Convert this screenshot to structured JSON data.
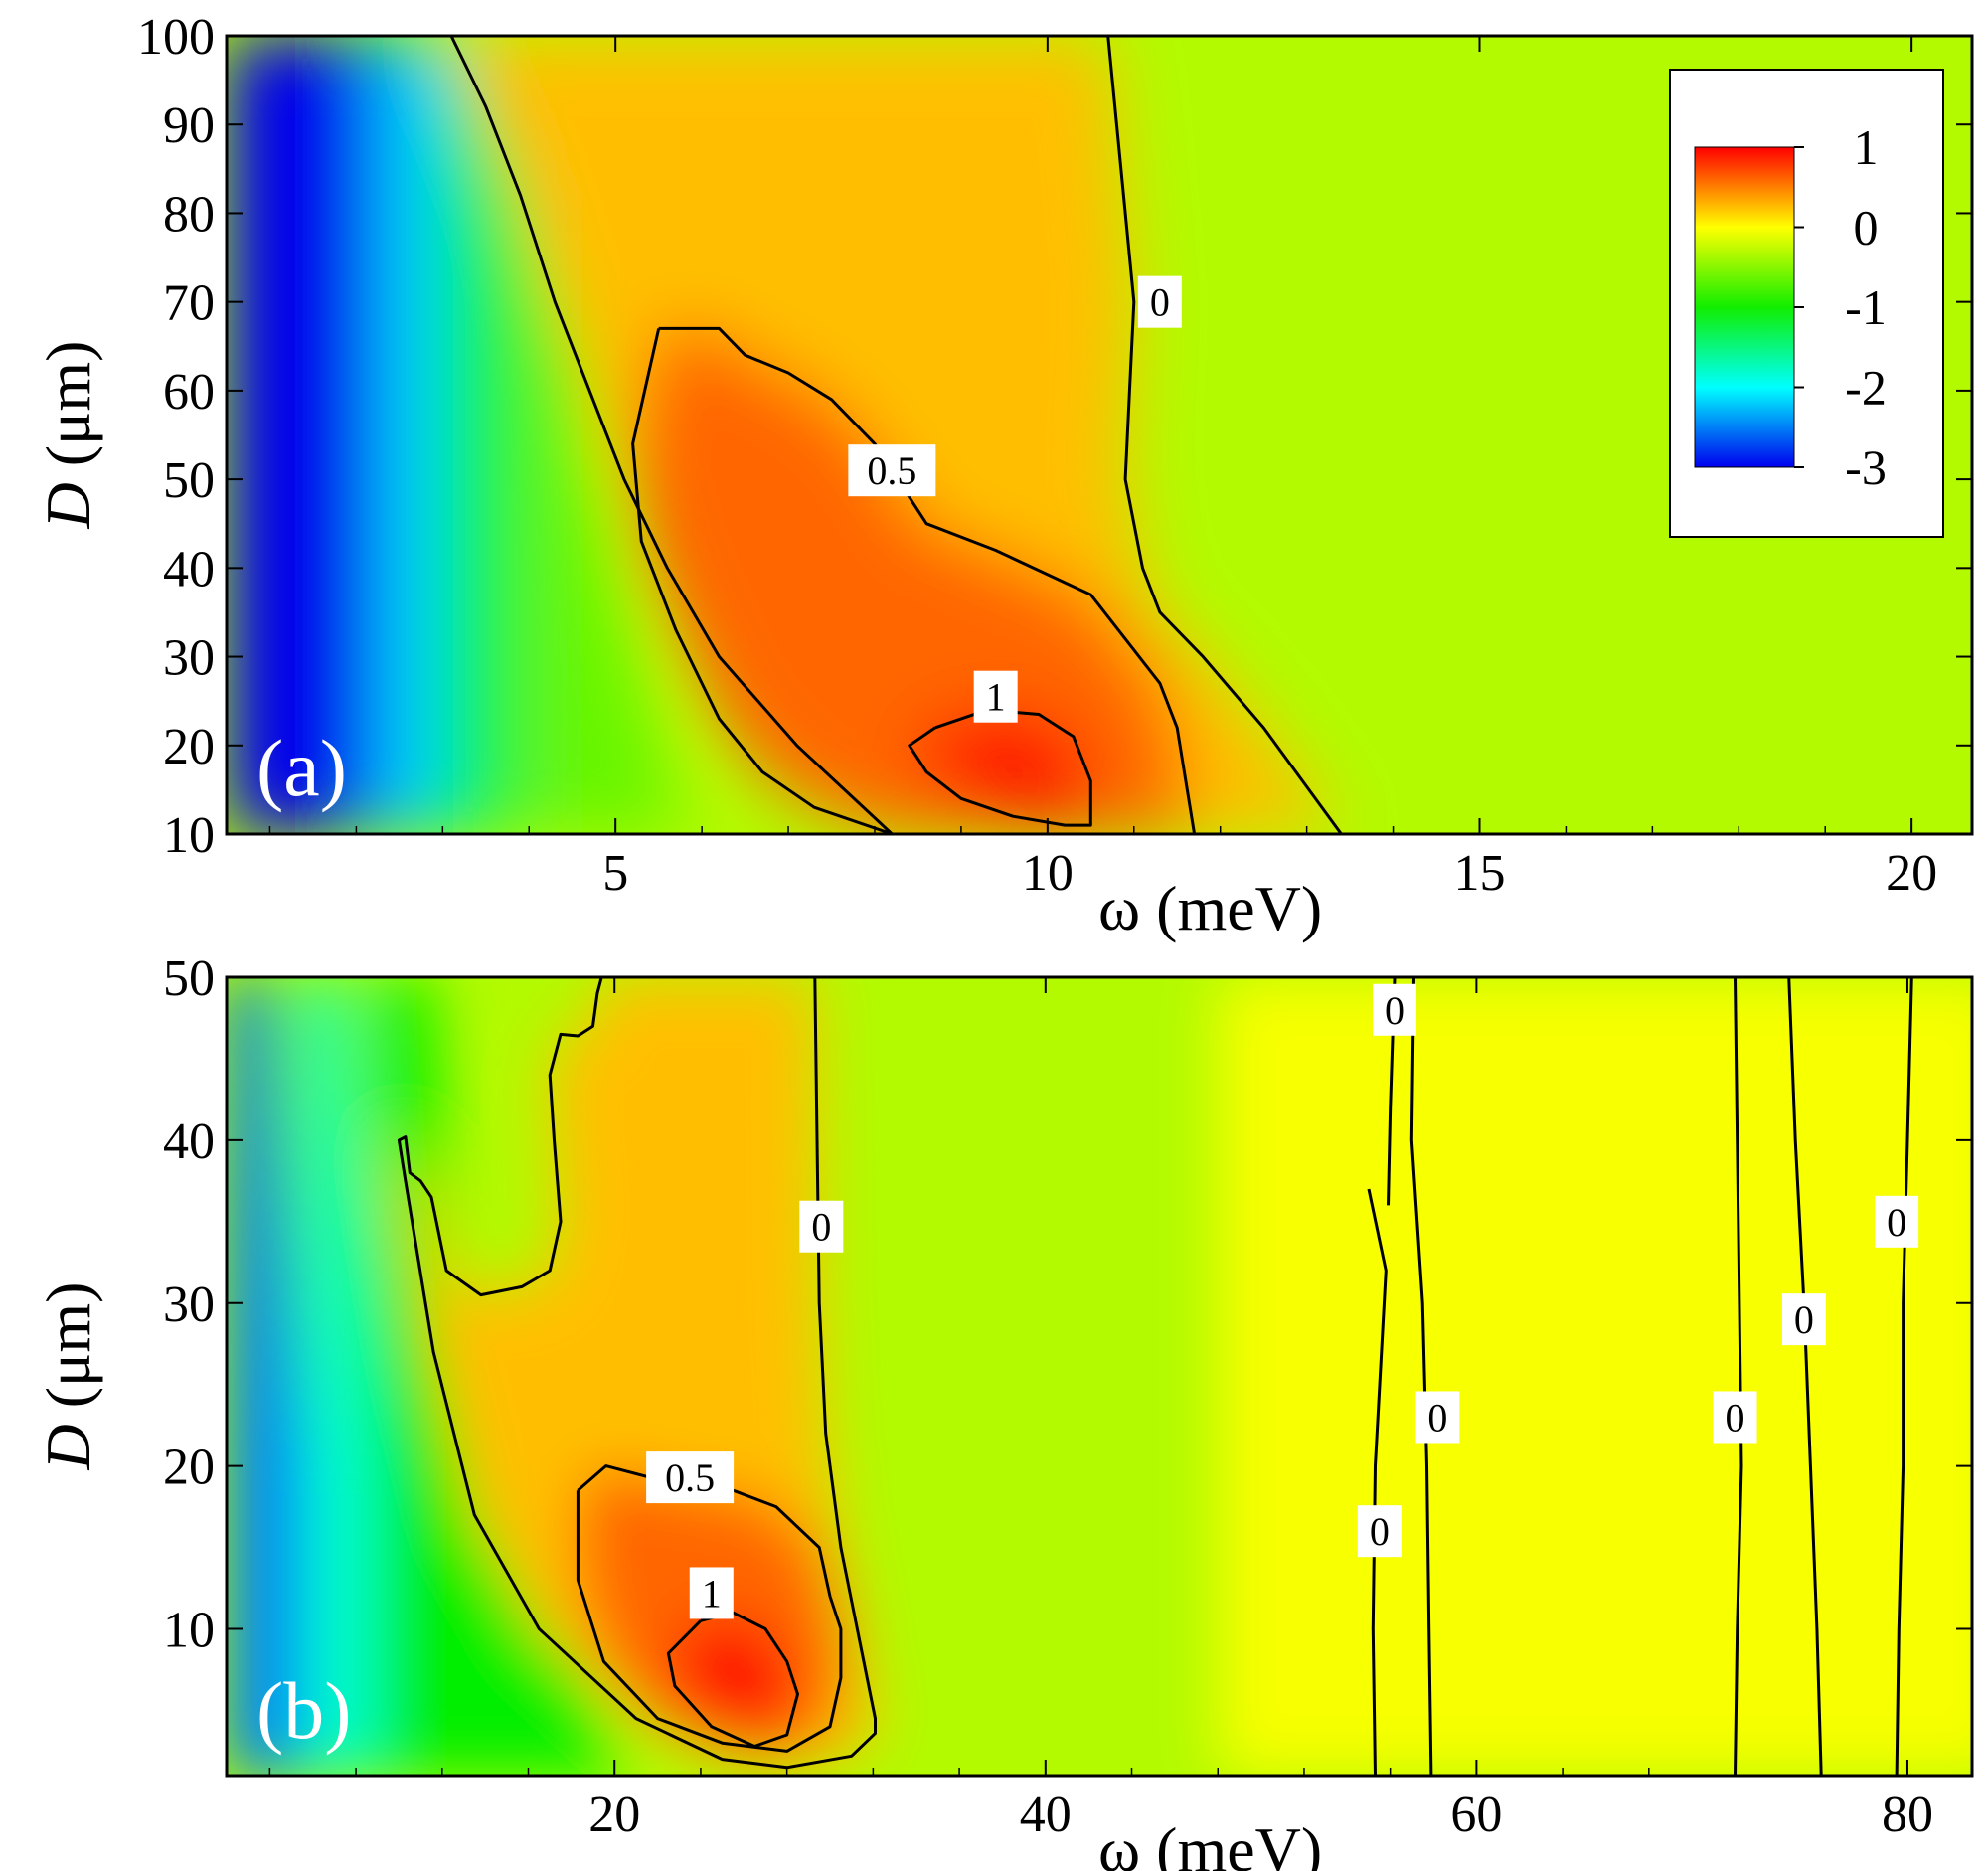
{
  "chart_data": [
    {
      "type": "heatmap",
      "panel_label": "(a)",
      "xlabel": "ω (meV)",
      "ylabel_symbol": "D",
      "ylabel_unit": "(μm)",
      "xlim": [
        0.5,
        20.7
      ],
      "ylim": [
        10,
        100
      ],
      "xticks": [
        5,
        10,
        15,
        20
      ],
      "xtick_labels": [
        "5",
        "10",
        "15",
        "20"
      ],
      "yticks": [
        10,
        20,
        30,
        40,
        50,
        60,
        70,
        80,
        90,
        100
      ],
      "ytick_labels": [
        "10",
        "20",
        "30",
        "40",
        "50",
        "60",
        "70",
        "80",
        "90",
        "100"
      ],
      "contours": [
        {
          "level": 0,
          "label": "0",
          "label_at": [
            11.3,
            70
          ],
          "points": [
            [
              3.1,
              100
            ],
            [
              3.5,
              92
            ],
            [
              3.9,
              82
            ],
            [
              4.3,
              70
            ],
            [
              4.7,
              60
            ],
            [
              5.1,
              50
            ],
            [
              5.6,
              40
            ],
            [
              6.2,
              30
            ],
            [
              7.1,
              20
            ],
            [
              8.2,
              10
            ]
          ]
        },
        {
          "level": 0,
          "label": "0",
          "label_at": [
            11.3,
            70
          ],
          "points": [
            [
              10.7,
              100
            ],
            [
              10.8,
              90
            ],
            [
              10.9,
              80
            ],
            [
              11.0,
              70
            ],
            [
              10.95,
              60
            ],
            [
              10.9,
              50
            ],
            [
              11.1,
              40
            ],
            [
              11.3,
              35
            ],
            [
              11.8,
              30
            ],
            [
              12.5,
              22
            ],
            [
              13.4,
              10
            ]
          ]
        },
        {
          "level": 0.5,
          "label": "0.5",
          "label_at": [
            8.2,
            51
          ],
          "points": [
            [
              5.5,
              67
            ],
            [
              6.2,
              67
            ],
            [
              6.5,
              64
            ],
            [
              7.0,
              62
            ],
            [
              7.5,
              59
            ],
            [
              8.0,
              54
            ],
            [
              8.6,
              45
            ],
            [
              9.4,
              42
            ],
            [
              10.5,
              37
            ],
            [
              10.9,
              32
            ],
            [
              11.3,
              27
            ],
            [
              11.5,
              22
            ],
            [
              11.6,
              16
            ],
            [
              11.7,
              10
            ],
            [
              8.2,
              10
            ],
            [
              7.3,
              13
            ],
            [
              6.7,
              17
            ],
            [
              6.2,
              23
            ],
            [
              5.7,
              33
            ],
            [
              5.3,
              43
            ],
            [
              5.2,
              54
            ],
            [
              5.5,
              67
            ]
          ]
        },
        {
          "level": 1,
          "label": "1",
          "label_at": [
            9.4,
            25.5
          ],
          "points": [
            [
              8.7,
              22
            ],
            [
              9.3,
              24
            ],
            [
              9.9,
              23.5
            ],
            [
              10.3,
              21
            ],
            [
              10.5,
              16
            ],
            [
              10.5,
              11
            ],
            [
              10.2,
              11
            ],
            [
              9.6,
              12
            ],
            [
              9.0,
              14
            ],
            [
              8.6,
              17
            ],
            [
              8.4,
              20
            ],
            [
              8.7,
              22
            ]
          ]
        }
      ]
    },
    {
      "type": "heatmap",
      "panel_label": "(b)",
      "xlabel": "ω (meV)",
      "ylabel_symbol": "D",
      "ylabel_unit": "(μm)",
      "xlim": [
        2,
        83
      ],
      "ylim": [
        1,
        50
      ],
      "xticks": [
        20,
        40,
        60,
        80
      ],
      "xtick_labels": [
        "20",
        "40",
        "60",
        "80"
      ],
      "yticks": [
        10,
        20,
        30,
        40,
        50
      ],
      "ytick_labels": [
        "10",
        "20",
        "30",
        "40",
        "50"
      ],
      "contours": [
        {
          "level": 0,
          "label": "0",
          "label_at": [
            29.6,
            34.7
          ],
          "points": [
            [
              29.3,
              50
            ],
            [
              29.4,
              40
            ],
            [
              29.5,
              30
            ],
            [
              29.8,
              22
            ],
            [
              30.5,
              15
            ],
            [
              32.1,
              4.5
            ],
            [
              32.1,
              3.6
            ],
            [
              31.0,
              2.2
            ],
            [
              28.0,
              1.5
            ],
            [
              25.0,
              2.0
            ],
            [
              21.0,
              4.5
            ],
            [
              16.5,
              10
            ],
            [
              13.5,
              17
            ],
            [
              11.6,
              27
            ],
            [
              10.3,
              37.5
            ],
            [
              10.0,
              40
            ],
            [
              10.3,
              40.2
            ],
            [
              10.5,
              38
            ],
            [
              11.0,
              37.5
            ],
            [
              11.5,
              36.5
            ],
            [
              12.2,
              32
            ],
            [
              13.8,
              30.5
            ],
            [
              15.7,
              31
            ],
            [
              17.0,
              32
            ],
            [
              17.5,
              35
            ],
            [
              17.2,
              40
            ],
            [
              17.0,
              44
            ],
            [
              17.5,
              46.5
            ],
            [
              18.3,
              46.4
            ],
            [
              19.0,
              47
            ],
            [
              19.2,
              49
            ],
            [
              19.4,
              50
            ]
          ]
        },
        {
          "level": 0.5,
          "label": "0.5",
          "label_at": [
            23.5,
            19.3
          ],
          "points": [
            [
              18.3,
              18.5
            ],
            [
              19.6,
              20
            ],
            [
              22.5,
              19
            ],
            [
              25.5,
              18.5
            ],
            [
              27.5,
              17.5
            ],
            [
              29.5,
              15
            ],
            [
              30.0,
              12
            ],
            [
              30.5,
              10
            ],
            [
              30.5,
              7
            ],
            [
              30.0,
              4
            ],
            [
              28.0,
              2.5
            ],
            [
              25.0,
              3.0
            ],
            [
              22.0,
              4.5
            ],
            [
              19.5,
              8
            ],
            [
              18.3,
              13
            ],
            [
              18.3,
              18.5
            ]
          ]
        },
        {
          "level": 1,
          "label": "1",
          "label_at": [
            24.5,
            12.2
          ],
          "points": [
            [
              24.0,
              10.5
            ],
            [
              25.5,
              11
            ],
            [
              27.0,
              10
            ],
            [
              28.0,
              8
            ],
            [
              28.5,
              6
            ],
            [
              28.0,
              3.5
            ],
            [
              26.5,
              2.8
            ],
            [
              24.5,
              4.0
            ],
            [
              22.8,
              6.5
            ],
            [
              22.5,
              8.5
            ],
            [
              24.0,
              10.5
            ]
          ]
        },
        {
          "level": 0,
          "label": "0",
          "label_at": [
            55.5,
            16
          ],
          "points": [
            [
              55.0,
              37
            ],
            [
              55.8,
              32
            ],
            [
              55.3,
              20
            ],
            [
              55.2,
              10
            ],
            [
              55.3,
              1
            ]
          ]
        },
        {
          "level": 0,
          "label": "0",
          "label_at": [
            58.2,
            23
          ],
          "points": [
            [
              57.1,
              50
            ],
            [
              57.0,
              40
            ],
            [
              57.5,
              30
            ],
            [
              57.7,
              20
            ],
            [
              57.8,
              10
            ],
            [
              57.9,
              1
            ]
          ]
        },
        {
          "level": 0,
          "label": "0",
          "label_at": [
            56.2,
            48
          ],
          "points": [
            [
              56.2,
              50
            ],
            [
              56.0,
              42
            ],
            [
              55.9,
              36
            ]
          ]
        },
        {
          "level": 0,
          "label": "0",
          "label_at": [
            72.0,
            23
          ],
          "points": [
            [
              72.0,
              50
            ],
            [
              72.1,
              40
            ],
            [
              72.2,
              30
            ],
            [
              72.3,
              20
            ],
            [
              72.1,
              10
            ],
            [
              72.0,
              1
            ]
          ]
        },
        {
          "level": 0,
          "label": "0",
          "label_at": [
            75.2,
            29
          ],
          "points": [
            [
              74.5,
              50
            ],
            [
              74.8,
              40
            ],
            [
              75.2,
              30
            ],
            [
              75.5,
              20
            ],
            [
              75.8,
              10
            ],
            [
              76.0,
              1
            ]
          ]
        },
        {
          "level": 0,
          "label": "0",
          "label_at": [
            79.5,
            35
          ],
          "points": [
            [
              80.2,
              50
            ],
            [
              80.0,
              40
            ],
            [
              79.8,
              30
            ],
            [
              79.8,
              20
            ],
            [
              79.6,
              10
            ],
            [
              79.5,
              1
            ]
          ]
        }
      ]
    }
  ],
  "colorbar": {
    "ticks": [
      {
        "value": 1,
        "label": "1"
      },
      {
        "value": 0,
        "label": "0"
      },
      {
        "value": -1,
        "label": "-1"
      },
      {
        "value": -2,
        "label": "-2"
      },
      {
        "value": -3,
        "label": "-3"
      }
    ],
    "range": [
      -3,
      1
    ],
    "colors": [
      "#0000ee",
      "#00ffff",
      "#00ee00",
      "#ffff00",
      "#ff0000"
    ]
  }
}
